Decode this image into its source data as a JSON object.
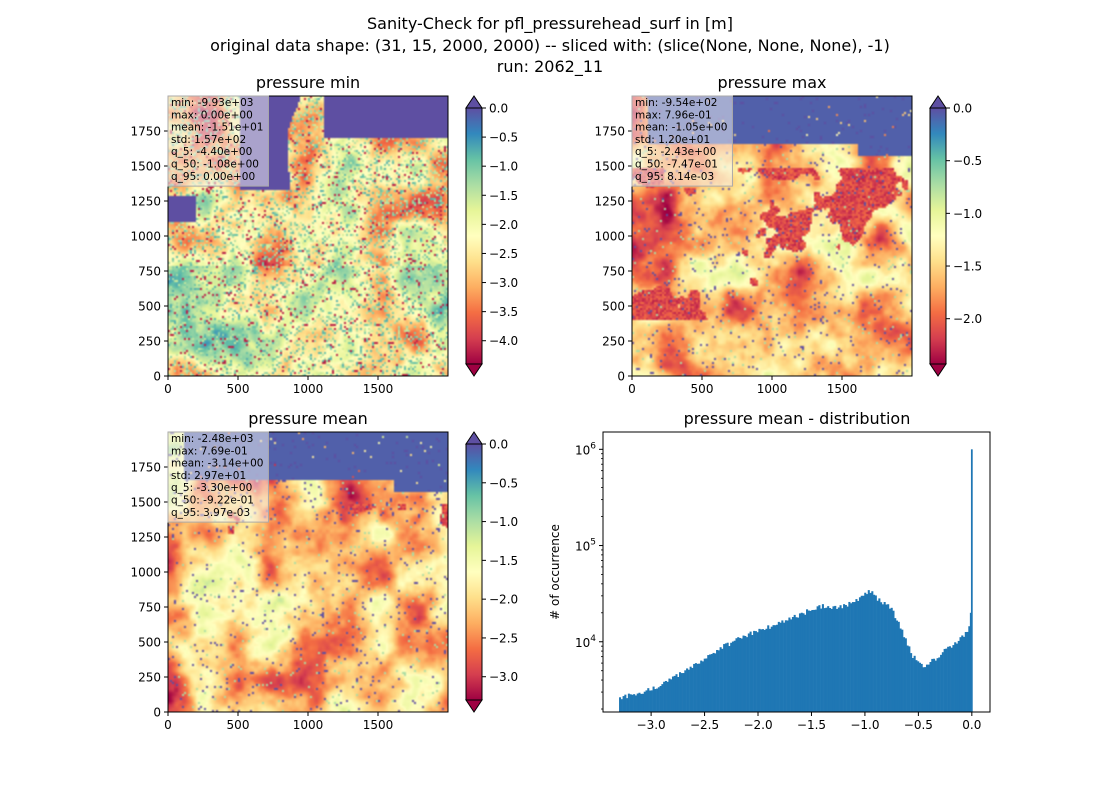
{
  "suptitle": {
    "line1": "Sanity-Check for pfl_pressurehead_surf in [m]",
    "line2": "original data shape: (31, 15, 2000, 2000) -- sliced with: (slice(None, None, None), -1)",
    "line3": "run: 2062_11"
  },
  "chart_data": [
    {
      "type": "heatmap",
      "title": "pressure min",
      "colormap": "Spectral",
      "xlim": [
        0,
        2000
      ],
      "ylim": [
        0,
        2000
      ],
      "xticks": [
        "0",
        "500",
        "1000",
        "1500"
      ],
      "yticks": [
        "0",
        "250",
        "500",
        "750",
        "1000",
        "1250",
        "1500",
        "1750"
      ],
      "colorbar": {
        "range": [
          -4.4,
          0.0
        ],
        "ticks": [
          "0.0",
          "−0.5",
          "−1.0",
          "−1.5",
          "−2.0",
          "−2.5",
          "−3.0",
          "−3.5",
          "−4.0"
        ],
        "extend": "both",
        "over_color": "#5e4fa2",
        "under_color": "#9e0142"
      },
      "stats": [
        "min: -9.93e+03",
        "max: 0.00e+00",
        "mean: -1.51e+01",
        "std: 1.57e+02",
        "q_5: -4.40e+00",
        "q_50: -1.08e+00",
        "q_95: 0.00e+00"
      ]
    },
    {
      "type": "heatmap",
      "title": "pressure max",
      "colormap": "Spectral",
      "xlim": [
        0,
        2000
      ],
      "ylim": [
        0,
        2000
      ],
      "xticks": [
        "0",
        "500",
        "1000",
        "1500"
      ],
      "yticks": [
        "0",
        "250",
        "500",
        "750",
        "1000",
        "1250",
        "1500",
        "1750"
      ],
      "colorbar": {
        "range": [
          -2.43,
          0.0
        ],
        "ticks": [
          "0.0",
          "−0.5",
          "−1.0",
          "−1.5",
          "−2.0"
        ],
        "extend": "both",
        "over_color": "#5e4fa2",
        "under_color": "#9e0142"
      },
      "stats": [
        "min: -9.54e+02",
        "max: 7.96e-01",
        "mean: -1.05e+00",
        "std: 1.20e+01",
        "q_5: -2.43e+00",
        "q_50: -7.47e-01",
        "q_95: 8.14e-03"
      ]
    },
    {
      "type": "heatmap",
      "title": "pressure mean",
      "colormap": "Spectral",
      "xlim": [
        0,
        2000
      ],
      "ylim": [
        0,
        2000
      ],
      "xticks": [
        "0",
        "500",
        "1000",
        "1500"
      ],
      "yticks": [
        "0",
        "250",
        "500",
        "750",
        "1000",
        "1250",
        "1500",
        "1750"
      ],
      "colorbar": {
        "range": [
          -3.3,
          0.0
        ],
        "ticks": [
          "0.0",
          "−0.5",
          "−1.0",
          "−1.5",
          "−2.0",
          "−2.5",
          "−3.0"
        ],
        "extend": "both",
        "over_color": "#5e4fa2",
        "under_color": "#9e0142"
      },
      "stats": [
        "min: -2.48e+03",
        "max: 7.69e-01",
        "mean: -3.14e+00",
        "std: 2.97e+01",
        "q_5: -3.30e+00",
        "q_50: -9.22e-01",
        "q_95: 3.97e-03"
      ]
    },
    {
      "type": "bar",
      "title": "pressure mean - distribution",
      "ylabel": "# of occurrence",
      "xlabel": "",
      "yscale": "log",
      "color": "#1f77b4",
      "xlim": [
        -3.45,
        0.17
      ],
      "ylim_log10": [
        3.27,
        6.18
      ],
      "bin_start": -3.3,
      "bin_end": 0.0,
      "bins": 200,
      "xticks": [
        {
          "v": -3.0,
          "label": "−3.0"
        },
        {
          "v": -2.5,
          "label": "−2.5"
        },
        {
          "v": -2.0,
          "label": "−2.0"
        },
        {
          "v": -1.5,
          "label": "−1.5"
        },
        {
          "v": -1.0,
          "label": "−1.0"
        },
        {
          "v": -0.5,
          "label": "−0.5"
        },
        {
          "v": 0.0,
          "label": "0.0"
        }
      ],
      "yticks": [
        {
          "exp": 4,
          "label": "10",
          "sup": "4"
        },
        {
          "exp": 5,
          "label": "10",
          "sup": "5"
        },
        {
          "exp": 6,
          "label": "10",
          "sup": "6"
        }
      ],
      "profile": [
        [
          -3.3,
          2500
        ],
        [
          -3.2,
          2800
        ],
        [
          -3.0,
          3200
        ],
        [
          -2.8,
          4200
        ],
        [
          -2.6,
          5600
        ],
        [
          -2.4,
          8000
        ],
        [
          -2.2,
          10500
        ],
        [
          -2.0,
          13000
        ],
        [
          -1.8,
          15500
        ],
        [
          -1.6,
          19500
        ],
        [
          -1.4,
          23500
        ],
        [
          -1.25,
          23000
        ],
        [
          -1.1,
          26000
        ],
        [
          -0.95,
          34000
        ],
        [
          -0.85,
          26000
        ],
        [
          -0.75,
          22000
        ],
        [
          -0.65,
          13000
        ],
        [
          -0.55,
          7000
        ],
        [
          -0.45,
          5500
        ],
        [
          -0.35,
          6500
        ],
        [
          -0.2,
          9000
        ],
        [
          -0.1,
          11000
        ],
        [
          -0.02,
          14000
        ]
      ],
      "spikes": [
        {
          "x": -0.01,
          "count": 20000
        },
        {
          "x": 0.0,
          "count": 1000000
        }
      ]
    }
  ]
}
